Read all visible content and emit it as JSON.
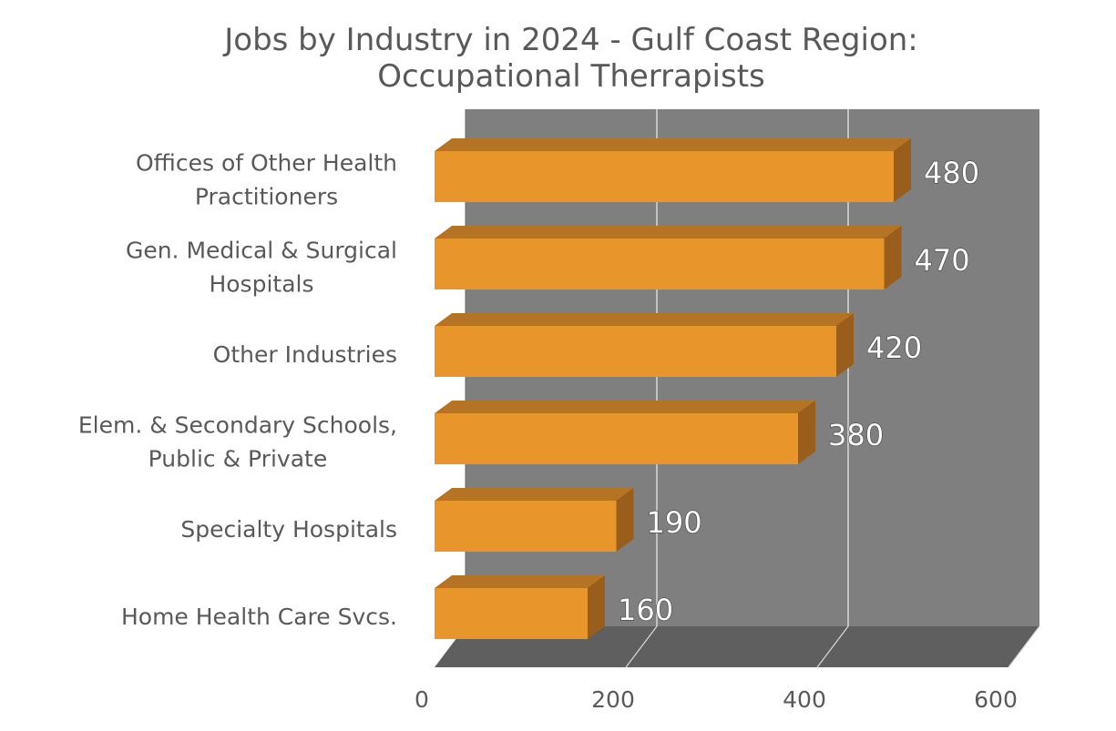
{
  "chart_data": {
    "type": "bar",
    "orientation": "horizontal",
    "style": "3d",
    "title_lines": [
      "Jobs by Industry in 2024 - Gulf Coast Region:",
      "Occupational Therrapists"
    ],
    "categories": [
      "Offices of Other Health Practitioners",
      "Gen. Medical & Surgical Hospitals",
      "Other Industries",
      "Elem. & Secondary Schools, Public & Private",
      "Specialty Hospitals",
      "Home Health Care Svcs."
    ],
    "category_label_lines": [
      [
        "Offices of Other Health",
        "Practitioners"
      ],
      [
        "Gen. Medical & Surgical",
        "Hospitals"
      ],
      [
        "Other Industries"
      ],
      [
        "Elem. & Secondary Schools,",
        "Public & Private"
      ],
      [
        "Specialty Hospitals"
      ],
      [
        "Home Health Care Svcs."
      ]
    ],
    "values": [
      480,
      470,
      420,
      380,
      190,
      160
    ],
    "data_labels": [
      "480",
      "470",
      "420",
      "380",
      "190",
      "160"
    ],
    "xlim": [
      0,
      600
    ],
    "x_ticks": [
      0,
      200,
      400,
      600
    ],
    "x_tick_labels": [
      "0",
      "200",
      "400",
      "600"
    ],
    "xlabel": "",
    "ylabel": "",
    "grid": true,
    "legend": "none",
    "colors": {
      "bar_front": "#E8952C",
      "bar_top": "#B57324",
      "bar_side": "#9A5E1C",
      "back_wall": "#7F7F7F",
      "floor": "#5F5F5F",
      "gridline": "#D9D9D9",
      "text": "#595959"
    }
  }
}
